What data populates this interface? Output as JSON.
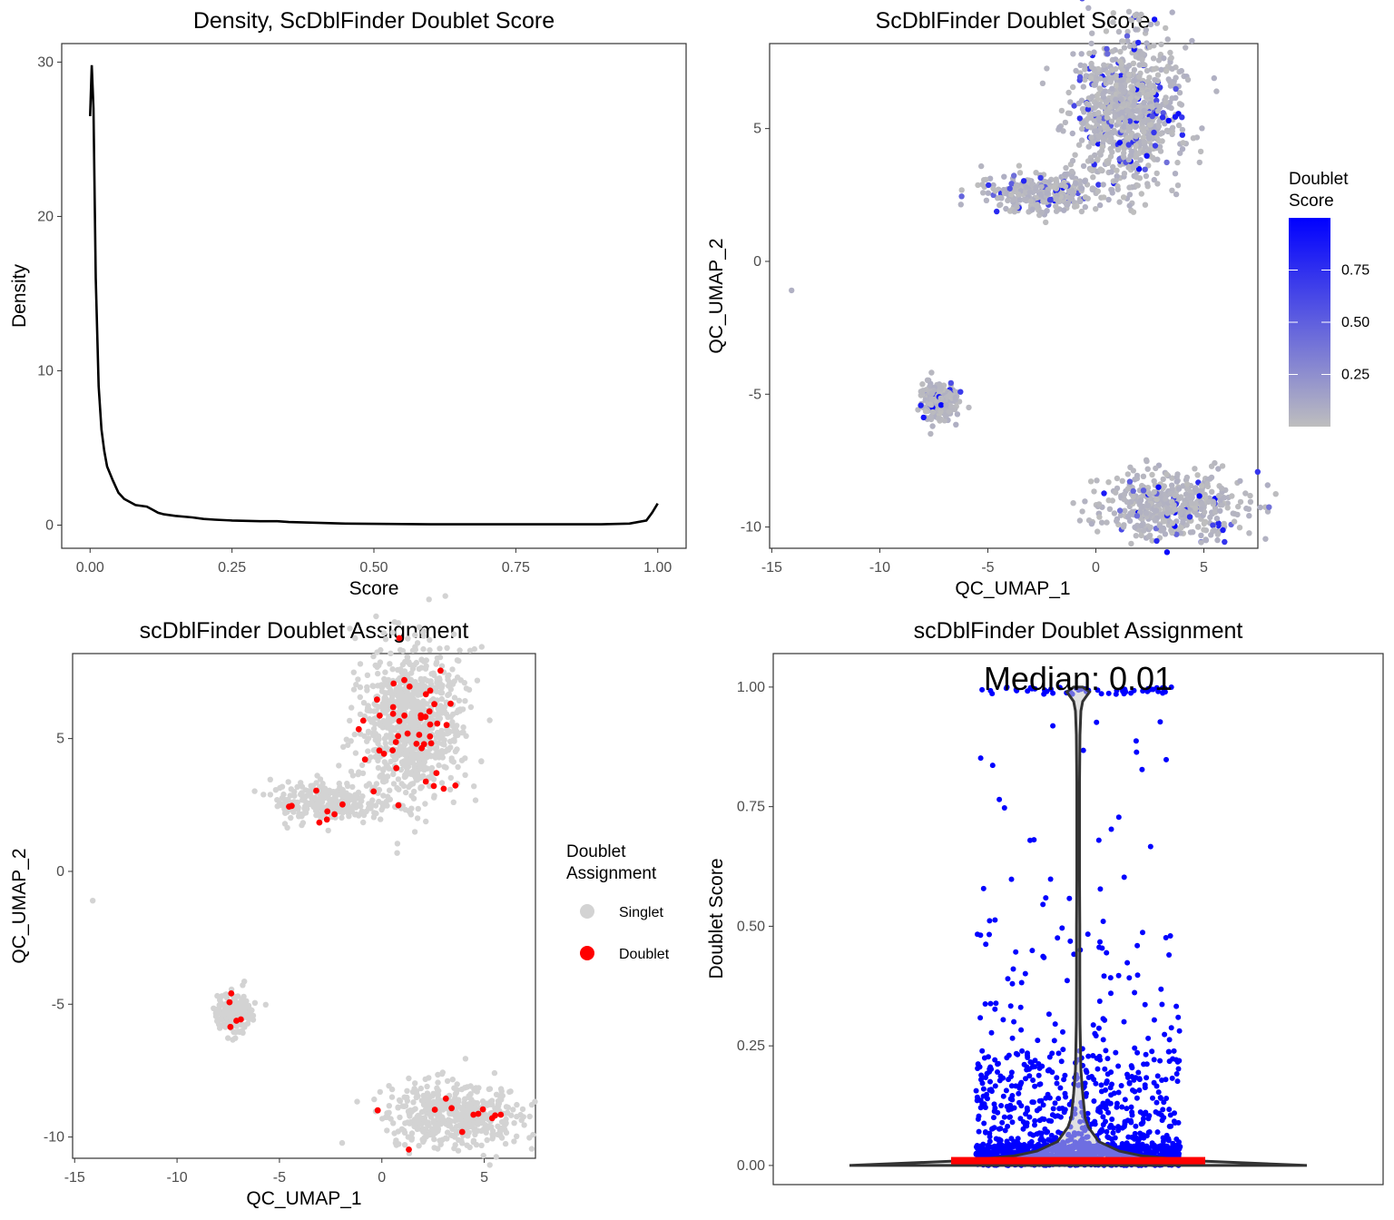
{
  "panels": {
    "density": {
      "title": "Density, ScDblFinder Doublet Score",
      "xlabel": "Score",
      "ylabel": "Density"
    },
    "umap_score": {
      "title": "ScDblFinder Doublet Score",
      "xlabel": "QC_UMAP_1",
      "ylabel": "QC_UMAP_2",
      "legend_title_1": "Doublet",
      "legend_title_2": "Score"
    },
    "umap_assign": {
      "title": "scDblFinder Doublet Assignment",
      "xlabel": "QC_UMAP_1",
      "ylabel": "QC_UMAP_2",
      "legend_title_1": "Doublet",
      "legend_title_2": "Assignment",
      "legend_singlet": "Singlet",
      "legend_doublet": "Doublet"
    },
    "violin": {
      "title": "scDblFinder Doublet Assignment",
      "ylabel": "Doublet Score",
      "median_label": "Median: 0.01"
    }
  },
  "colors": {
    "singlet": "#d3d3d3",
    "doublet": "#ff0000",
    "score_low": "#bebebe",
    "score_high": "#0000ff",
    "violin_fill": "#c8c8c8",
    "violin_line": "#333333",
    "median_bar": "#ff0000"
  },
  "chart_data": [
    {
      "type": "line",
      "title": "Density, ScDblFinder Doublet Score",
      "xlabel": "Score",
      "ylabel": "Density",
      "xlim": [
        0,
        1
      ],
      "ylim": [
        0,
        30
      ],
      "xticks": [
        "0.00",
        "0.25",
        "0.50",
        "0.75",
        "1.00"
      ],
      "yticks": [
        "0",
        "10",
        "20",
        "30"
      ],
      "grid": false,
      "x": [
        0.0,
        0.003,
        0.006,
        0.01,
        0.015,
        0.02,
        0.025,
        0.03,
        0.04,
        0.05,
        0.06,
        0.07,
        0.08,
        0.1,
        0.11,
        0.12,
        0.13,
        0.15,
        0.18,
        0.2,
        0.22,
        0.25,
        0.3,
        0.33,
        0.35,
        0.4,
        0.45,
        0.5,
        0.6,
        0.7,
        0.8,
        0.9,
        0.95,
        0.98,
        0.99,
        1.0
      ],
      "y": [
        26.5,
        29.8,
        27.0,
        16.0,
        9.0,
        6.2,
        4.8,
        3.8,
        2.9,
        2.1,
        1.7,
        1.5,
        1.3,
        1.2,
        1.0,
        0.8,
        0.7,
        0.6,
        0.5,
        0.4,
        0.35,
        0.3,
        0.25,
        0.25,
        0.2,
        0.15,
        0.1,
        0.08,
        0.05,
        0.05,
        0.05,
        0.05,
        0.1,
        0.3,
        0.8,
        1.4
      ]
    },
    {
      "type": "scatter",
      "title": "ScDblFinder Doublet Score",
      "xlabel": "QC_UMAP_1",
      "ylabel": "QC_UMAP_2",
      "xlim": [
        -15,
        7
      ],
      "ylim": [
        -10.5,
        8.5
      ],
      "xticks": [
        "-15",
        "-10",
        "-5",
        "0",
        "5"
      ],
      "yticks": [
        "-10",
        "-5",
        "0",
        "5"
      ],
      "color_scale": {
        "name": "Doublet Score",
        "low": "#bebebe",
        "high": "#0000ff",
        "breaks": [
          "0.25",
          "0.50",
          "0.75"
        ],
        "range": [
          0,
          1
        ]
      },
      "clusters": [
        {
          "center": [
            1.5,
            5.6
          ],
          "spread": [
            1.2,
            1.4
          ],
          "n_cells": 900,
          "score_frac_high": 0.1
        },
        {
          "center": [
            -2.5,
            2.6
          ],
          "spread": [
            1.4,
            0.4
          ],
          "n_cells": 300,
          "score_frac_high": 0.1
        },
        {
          "center": [
            -7.2,
            -5.3
          ],
          "spread": [
            0.4,
            0.35
          ],
          "n_cells": 250,
          "score_frac_high": 0.05
        },
        {
          "center": [
            3.5,
            -9.2
          ],
          "spread": [
            1.6,
            0.6
          ],
          "n_cells": 500,
          "score_frac_high": 0.08
        },
        {
          "center": [
            -14.1,
            -1.1
          ],
          "spread": [
            0.02,
            0.02
          ],
          "n_cells": 1,
          "score_frac_high": 0
        }
      ]
    },
    {
      "type": "scatter",
      "title": "scDblFinder Doublet Assignment",
      "xlabel": "QC_UMAP_1",
      "ylabel": "QC_UMAP_2",
      "xlim": [
        -15,
        7
      ],
      "ylim": [
        -10.5,
        8.5
      ],
      "xticks": [
        "-15",
        "-10",
        "-5",
        "0",
        "5"
      ],
      "yticks": [
        "-10",
        "-5",
        "0",
        "5"
      ],
      "legend": {
        "title": "Doublet Assignment",
        "entries": [
          "Singlet",
          "Doublet"
        ],
        "placement": "right"
      },
      "clusters": [
        {
          "center": [
            1.5,
            5.6
          ],
          "spread": [
            1.2,
            1.4
          ],
          "n_cells": 900,
          "doublet_frac": 0.04
        },
        {
          "center": [
            -2.5,
            2.6
          ],
          "spread": [
            1.4,
            0.4
          ],
          "n_cells": 300,
          "doublet_frac": 0.03
        },
        {
          "center": [
            -7.2,
            -5.3
          ],
          "spread": [
            0.4,
            0.35
          ],
          "n_cells": 250,
          "doublet_frac": 0.02
        },
        {
          "center": [
            3.5,
            -9.2
          ],
          "spread": [
            1.6,
            0.6
          ],
          "n_cells": 500,
          "doublet_frac": 0.02
        },
        {
          "center": [
            -14.1,
            -1.1
          ],
          "spread": [
            0.02,
            0.02
          ],
          "n_cells": 1,
          "doublet_frac": 0
        }
      ]
    },
    {
      "type": "violin",
      "title": "scDblFinder Doublet Assignment",
      "ylabel": "Doublet Score",
      "ylim": [
        -0.04,
        1.07
      ],
      "yticks": [
        "0.00",
        "0.25",
        "0.50",
        "0.75",
        "1.00"
      ],
      "median": 0.01,
      "annotation": "Median: 0.01",
      "violin_profile": {
        "y": [
          0.0,
          0.005,
          0.01,
          0.02,
          0.03,
          0.05,
          0.08,
          0.1,
          0.15,
          0.2,
          0.25,
          0.3,
          0.4,
          0.5,
          0.6,
          0.7,
          0.8,
          0.9,
          0.95,
          0.97,
          0.98,
          0.99,
          1.0
        ],
        "half_width": [
          1.0,
          0.75,
          0.5,
          0.28,
          0.18,
          0.09,
          0.045,
          0.03,
          0.02,
          0.012,
          0.01,
          0.008,
          0.007,
          0.007,
          0.006,
          0.006,
          0.006,
          0.008,
          0.012,
          0.02,
          0.035,
          0.05,
          0.02
        ]
      },
      "jitter_points": {
        "n": 1600,
        "color": "#0000ff",
        "spread": 0.45
      }
    }
  ]
}
